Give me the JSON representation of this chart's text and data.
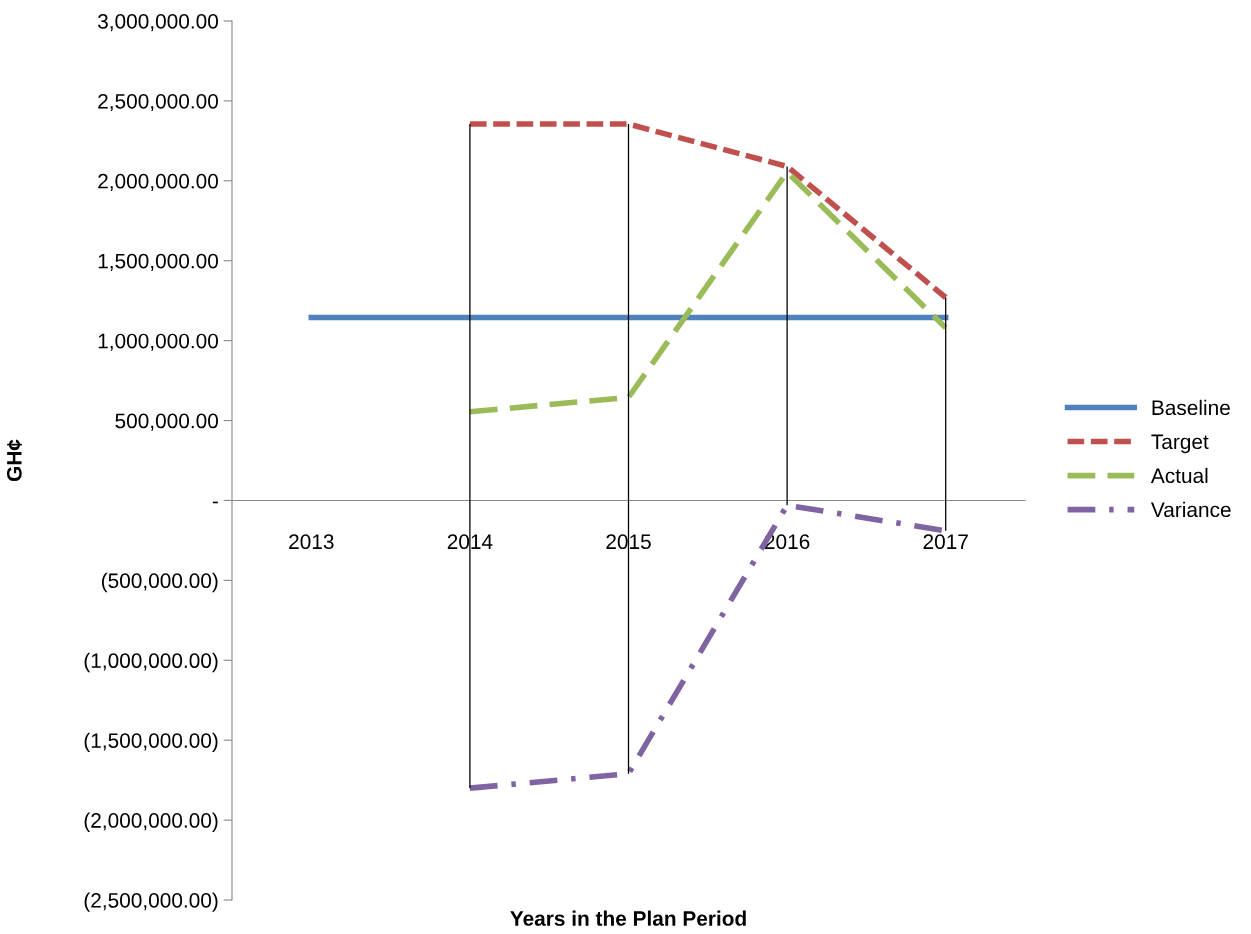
{
  "chart_data": {
    "type": "line",
    "xlabel": "Years in the Plan Period",
    "ylabel": "GH¢",
    "categories": [
      "2013",
      "2014",
      "2015",
      "2016",
      "2017"
    ],
    "series": [
      {
        "name": "Baseline",
        "color": "#4f81bd",
        "line_style": "solid",
        "values": [
          1145000,
          1145000,
          1145000,
          1145000,
          1145000
        ]
      },
      {
        "name": "Target",
        "color": "#c0504d",
        "line_style": "dashed",
        "values": [
          null,
          2355000,
          2355000,
          2090000,
          1270000
        ]
      },
      {
        "name": "Actual",
        "color": "#9bbb59",
        "line_style": "longdash",
        "values": [
          null,
          555000,
          645000,
          2055000,
          1080000
        ]
      },
      {
        "name": "Variance",
        "color": "#8064a2",
        "line_style": "dashdot",
        "values": [
          null,
          -1800000,
          -1710000,
          -30000,
          -190000
        ]
      },
      {
        "type": "bar",
        "color": "#000000",
        "base": [
          null,
          -1800000,
          -1710000,
          -30000,
          -190000
        ],
        "values": [
          null,
          4155000,
          4065000,
          2120000,
          1460000
        ]
      }
    ],
    "ylim": [
      -2500000,
      3000000
    ],
    "yticks": [
      {
        "value": -2500000,
        "label": "(2,500,000.00)"
      },
      {
        "value": -2000000,
        "label": "(2,000,000.00)"
      },
      {
        "value": -1500000,
        "label": "(1,500,000.00)"
      },
      {
        "value": -1000000,
        "label": "(1,000,000.00)"
      },
      {
        "value": -500000,
        "label": "(500,000.00)"
      },
      {
        "value": 0,
        "label": "-"
      },
      {
        "value": 500000,
        "label": "500,000.00"
      },
      {
        "value": 1000000,
        "label": "1,000,000.00"
      },
      {
        "value": 1500000,
        "label": "1,500,000.00"
      },
      {
        "value": 2000000,
        "label": "2,000,000.00"
      },
      {
        "value": 2500000,
        "label": "2,500,000.00"
      },
      {
        "value": 3000000,
        "label": "3,000,000.00"
      }
    ],
    "legend": "right",
    "marker": "none"
  }
}
